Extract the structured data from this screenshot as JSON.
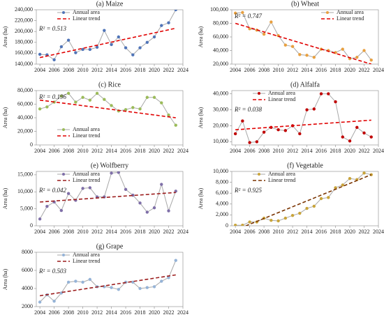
{
  "chart_data": [
    {
      "type": "line",
      "title": "(a) Maize",
      "y_label": "Area (ha)",
      "annotation": "R² = 0.513",
      "legend": "upper-left",
      "xlim": [
        2003.5,
        2024
      ],
      "xticks": [
        2004,
        2006,
        2008,
        2010,
        2012,
        2014,
        2016,
        2018,
        2020,
        2022,
        2024
      ],
      "ylim": [
        140000,
        240000
      ],
      "yticks": [
        {
          "value": 140000,
          "label": "140,000"
        },
        {
          "value": 160000,
          "label": "160,000"
        },
        {
          "value": 180000,
          "label": "180,000"
        },
        {
          "value": 200000,
          "label": "200,000"
        },
        {
          "value": 220000,
          "label": "220,000"
        },
        {
          "value": 240000,
          "label": "240,000"
        }
      ],
      "series": [
        {
          "name": "Annual area",
          "color": "#4f74b8",
          "line_color": "#a8a8a8",
          "x": [
            2004,
            2005,
            2006,
            2007,
            2008,
            2009,
            2010,
            2011,
            2012,
            2013,
            2014,
            2015,
            2016,
            2017,
            2018,
            2019,
            2020,
            2021,
            2022,
            2023
          ],
          "values": [
            158000,
            157000,
            148000,
            172000,
            184000,
            161000,
            167000,
            167000,
            171000,
            202000,
            176000,
            190000,
            170000,
            157000,
            170000,
            180000,
            190000,
            211000,
            216000,
            240000
          ]
        },
        {
          "name": "Linear trend",
          "color": "#e00000",
          "dashed": true,
          "x": [
            2004,
            2023
          ],
          "values": [
            152000,
            206000
          ]
        }
      ]
    },
    {
      "type": "line",
      "title": "(b) Wheat",
      "y_label": "Area (ha)",
      "annotation": "R² = 0.747",
      "legend": "upper-right",
      "xlim": [
        2003.5,
        2024
      ],
      "xticks": [
        2004,
        2006,
        2008,
        2010,
        2012,
        2014,
        2016,
        2018,
        2020,
        2022,
        2024
      ],
      "ylim": [
        20000,
        100000
      ],
      "yticks": [
        {
          "value": 20000,
          "label": "20,000"
        },
        {
          "value": 40000,
          "label": "40,000"
        },
        {
          "value": 60000,
          "label": "60,000"
        },
        {
          "value": 80000,
          "label": "80,000"
        },
        {
          "value": 100000,
          "label": "100,000"
        }
      ],
      "series": [
        {
          "name": "Annual area",
          "color": "#e8a040",
          "line_color": "#a8a8a8",
          "x": [
            2004,
            2005,
            2006,
            2007,
            2008,
            2009,
            2010,
            2011,
            2012,
            2013,
            2014,
            2015,
            2016,
            2017,
            2018,
            2019,
            2020,
            2021,
            2022,
            2023
          ],
          "values": [
            95000,
            96000,
            72000,
            70000,
            64000,
            82000,
            62000,
            48000,
            46000,
            34000,
            33000,
            30000,
            42000,
            40000,
            37000,
            42000,
            28000,
            30000,
            40000,
            26000
          ]
        },
        {
          "name": "Linear trend",
          "color": "#e00000",
          "dashed": true,
          "x": [
            2004,
            2023
          ],
          "values": [
            80000,
            20000
          ]
        }
      ]
    },
    {
      "type": "line",
      "title": "(c) Rice",
      "y_label": "Area (ha)",
      "annotation": "R² = 0.196",
      "legend": "lower-left",
      "xlim": [
        2003.5,
        2024
      ],
      "xticks": [
        2004,
        2006,
        2008,
        2010,
        2012,
        2014,
        2016,
        2018,
        2020,
        2022,
        2024
      ],
      "ylim": [
        0,
        80000
      ],
      "yticks": [
        0,
        {
          "value": 20000,
          "label": "20,000"
        },
        {
          "value": 40000,
          "label": "40,000"
        },
        {
          "value": 60000,
          "label": "60,000"
        },
        {
          "value": 80000,
          "label": "80,000"
        }
      ],
      "series": [
        {
          "name": "Annual area",
          "color": "#9bbb59",
          "line_color": "#a8a8a8",
          "x": [
            2004,
            2005,
            2006,
            2007,
            2008,
            2009,
            2010,
            2011,
            2012,
            2013,
            2014,
            2015,
            2016,
            2017,
            2018,
            2019,
            2020,
            2021,
            2022,
            2023
          ],
          "values": [
            53000,
            56000,
            63000,
            72000,
            76000,
            63000,
            70000,
            66000,
            76000,
            67000,
            58000,
            50000,
            52000,
            55000,
            53000,
            70000,
            70000,
            62000,
            44000,
            29000
          ]
        },
        {
          "name": "Linear trend",
          "color": "#e00000",
          "dashed": true,
          "x": [
            2004,
            2023
          ],
          "values": [
            66000,
            40000
          ]
        }
      ]
    },
    {
      "type": "line",
      "title": "(d) Alfalfa",
      "y_label": "Area (ha)",
      "annotation": "R² = 0.038",
      "legend": "upper-left",
      "xlim": [
        2003.5,
        2024
      ],
      "xticks": [
        2004,
        2006,
        2008,
        2010,
        2012,
        2014,
        2016,
        2018,
        2020,
        2022,
        2024
      ],
      "ylim": [
        8000,
        42000
      ],
      "yticks": [
        {
          "value": 10000,
          "label": "10,000"
        },
        {
          "value": 20000,
          "label": "20,000"
        },
        {
          "value": 30000,
          "label": "30,000"
        },
        {
          "value": 40000,
          "label": "40,000"
        }
      ],
      "series": [
        {
          "name": "Annual area",
          "color": "#c00000",
          "line_color": "#a8a8a8",
          "x": [
            2004,
            2005,
            2006,
            2007,
            2008,
            2009,
            2010,
            2011,
            2012,
            2013,
            2014,
            2015,
            2016,
            2017,
            2018,
            2019,
            2020,
            2021,
            2022,
            2023
          ],
          "values": [
            15000,
            23000,
            9500,
            10000,
            16000,
            19000,
            17500,
            17000,
            20000,
            15000,
            30000,
            30500,
            40000,
            40000,
            35000,
            13000,
            10500,
            19000,
            15500,
            13000
          ]
        },
        {
          "name": "Linear trend",
          "color": "#e00000",
          "dashed": true,
          "x": [
            2004,
            2023
          ],
          "values": [
            17500,
            23500
          ]
        }
      ]
    },
    {
      "type": "line",
      "title": "(e) Wolfberry",
      "y_label": "Area (ha)",
      "annotation": "R² = 0.042",
      "legend": "upper-left",
      "xlim": [
        2003.5,
        2024
      ],
      "xticks": [
        2004,
        2006,
        2008,
        2010,
        2012,
        2014,
        2016,
        2018,
        2020,
        2022,
        2024
      ],
      "ylim": [
        0,
        16000
      ],
      "yticks": [
        0,
        {
          "value": 5000,
          "label": "5,000"
        },
        {
          "value": 10000,
          "label": "10,000"
        },
        {
          "value": 15000,
          "label": "15,000"
        }
      ],
      "series": [
        {
          "name": "Annual area",
          "color": "#7f6fa8",
          "line_color": "#a8a8a8",
          "x": [
            2004,
            2005,
            2006,
            2007,
            2008,
            2009,
            2010,
            2011,
            2012,
            2013,
            2014,
            2015,
            2016,
            2017,
            2018,
            2019,
            2020,
            2021,
            2022,
            2023
          ],
          "values": [
            2000,
            5700,
            7000,
            4500,
            9500,
            7500,
            11000,
            11200,
            8500,
            8500,
            15500,
            15700,
            10700,
            9000,
            6700,
            4000,
            5300,
            12200,
            4400,
            10200
          ]
        },
        {
          "name": "Linear trend",
          "color": "#9b1c1c",
          "dashed": true,
          "x": [
            2004,
            2023
          ],
          "values": [
            7000,
            9800
          ]
        }
      ]
    },
    {
      "type": "line",
      "title": "(f) Vegetable",
      "y_label": "Area (ha)",
      "annotation": "R² = 0.925",
      "legend": "upper-left",
      "xlim": [
        2003.5,
        2024
      ],
      "xticks": [
        2004,
        2006,
        2008,
        2010,
        2012,
        2014,
        2016,
        2018,
        2020,
        2022,
        2024
      ],
      "ylim": [
        0,
        10000
      ],
      "yticks": [
        0,
        {
          "value": 2000,
          "label": "2,000"
        },
        {
          "value": 4000,
          "label": "4,000"
        },
        {
          "value": 6000,
          "label": "6,000"
        },
        {
          "value": 8000,
          "label": "8,000"
        },
        {
          "value": 10000,
          "label": "10,000"
        }
      ],
      "series": [
        {
          "name": "Annual area",
          "color": "#c9a43a",
          "line_color": "#a8a8a8",
          "x": [
            2004,
            2005,
            2006,
            2007,
            2008,
            2009,
            2010,
            2011,
            2012,
            2013,
            2014,
            2015,
            2016,
            2017,
            2018,
            2019,
            2020,
            2021,
            2022,
            2023
          ],
          "values": [
            100,
            100,
            700,
            700,
            1400,
            1000,
            900,
            1400,
            1900,
            2300,
            3200,
            3600,
            5000,
            5200,
            7000,
            7500,
            8700,
            8500,
            9700,
            9400
          ]
        },
        {
          "name": "Linear trend",
          "color": "#7a3300",
          "dashed": true,
          "x": [
            2004,
            2023
          ],
          "values": [
            -800,
            9400
          ]
        }
      ]
    },
    {
      "type": "line",
      "title": "(g) Grape",
      "y_label": "Area (ha)",
      "annotation": "R² = 0.503",
      "legend": "upper-left",
      "xlim": [
        2003.5,
        2024
      ],
      "xticks": [
        2004,
        2006,
        2008,
        2010,
        2012,
        2014,
        2016,
        2018,
        2020,
        2022,
        2024
      ],
      "ylim": [
        2000,
        8000
      ],
      "yticks": [
        2000,
        4000,
        6000,
        8000
      ],
      "series": [
        {
          "name": "Annual area",
          "color": "#95b3d7",
          "line_color": "#a8a8a8",
          "x": [
            2004,
            2005,
            2006,
            2007,
            2008,
            2009,
            2010,
            2011,
            2012,
            2013,
            2014,
            2015,
            2016,
            2017,
            2018,
            2019,
            2020,
            2021,
            2022,
            2023
          ],
          "values": [
            2500,
            3300,
            2600,
            3500,
            4700,
            4800,
            4700,
            5000,
            4200,
            4200,
            4100,
            3900,
            4700,
            4700,
            4000,
            4100,
            4200,
            4800,
            5200,
            7100
          ]
        },
        {
          "name": "Linear trend",
          "color": "#9b1c1c",
          "dashed": true,
          "x": [
            2004,
            2023
          ],
          "values": [
            3200,
            5500
          ]
        }
      ]
    }
  ]
}
